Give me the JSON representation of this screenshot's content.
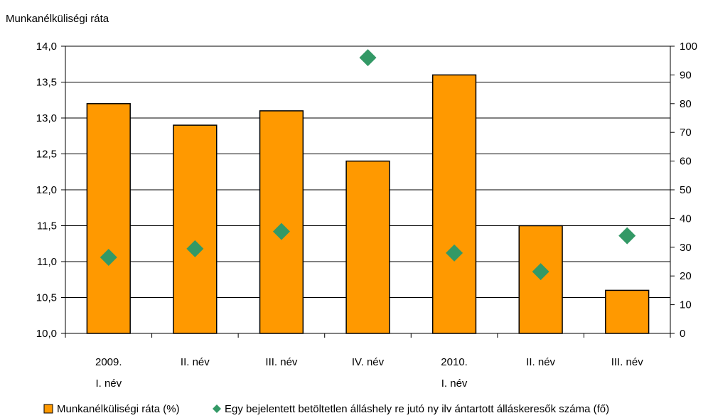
{
  "chart_data": {
    "type": "bar",
    "title": "",
    "left_axis_title": "Munkanélküliségi ráta",
    "categories": [
      [
        "2009.",
        "I. név"
      ],
      [
        "II. név",
        ""
      ],
      [
        "III. név",
        ""
      ],
      [
        "IV. név",
        ""
      ],
      [
        "2010.",
        "I. név"
      ],
      [
        "II. név",
        ""
      ],
      [
        "III. név",
        ""
      ]
    ],
    "series": [
      {
        "name": "Munkanélküliségi ráta (%)",
        "kind": "bar",
        "axis": "left",
        "color": "#FF9900",
        "values": [
          13.2,
          12.9,
          13.1,
          12.4,
          13.6,
          11.5,
          10.6
        ]
      },
      {
        "name": "Egy  bejelentett betöltetlen álláshely re jutó ny ilv ántartott álláskeresők száma (fő)",
        "kind": "scatter",
        "marker": "diamond",
        "axis": "right",
        "color": "#339966",
        "values": [
          26.5,
          29.5,
          35.5,
          96,
          28,
          21.5,
          34
        ]
      }
    ],
    "left_axis": {
      "min": 10,
      "max": 14,
      "step": 0.5,
      "tick_labels": [
        "10,0",
        "10,5",
        "11,0",
        "11,5",
        "12,0",
        "12,5",
        "13,0",
        "13,5",
        "14,0"
      ]
    },
    "right_axis": {
      "min": 0,
      "max": 100,
      "step": 10,
      "tick_labels": [
        "0",
        "10",
        "20",
        "30",
        "40",
        "50",
        "60",
        "70",
        "80",
        "90",
        "100"
      ]
    },
    "grid": true,
    "legend_position": "bottom"
  }
}
